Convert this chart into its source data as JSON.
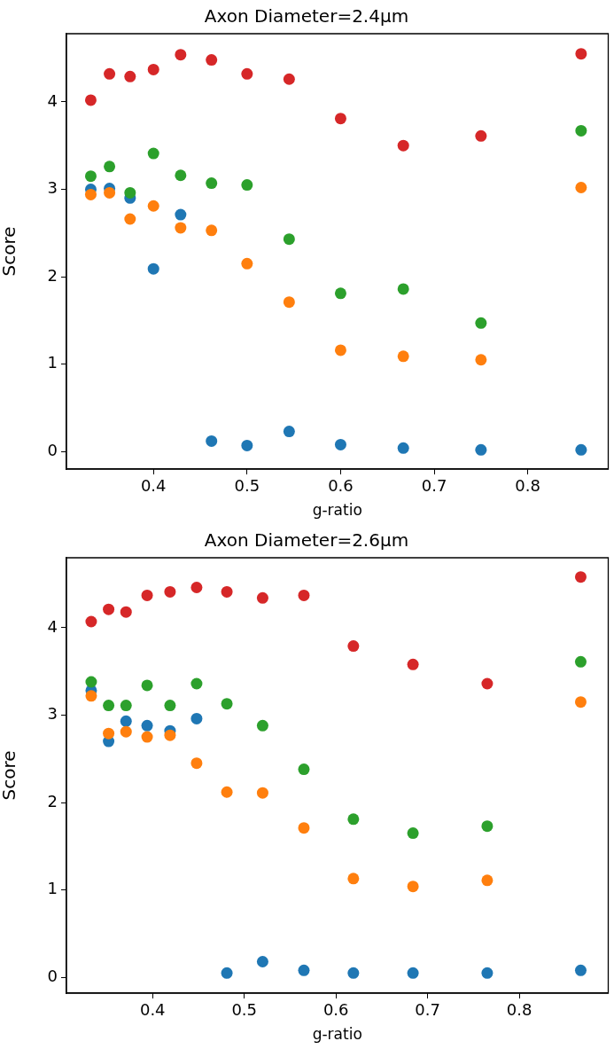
{
  "chart_data": [
    {
      "type": "scatter",
      "title": "Axon Diameter=2.4μm",
      "xlabel": "g-ratio",
      "ylabel": "Score",
      "x": [
        0.333,
        0.353,
        0.375,
        0.4,
        0.429,
        0.462,
        0.5,
        0.545,
        0.6,
        0.667,
        0.75,
        0.857
      ],
      "series": [
        {
          "color": "#1f77b4",
          "values": [
            3.0,
            3.01,
            2.9,
            2.09,
            2.71,
            0.12,
            0.07,
            0.23,
            0.08,
            0.04,
            0.02,
            0.02
          ]
        },
        {
          "color": "#ff7f0e",
          "values": [
            2.94,
            2.96,
            2.66,
            2.81,
            2.56,
            2.53,
            2.15,
            1.71,
            1.16,
            1.09,
            1.05,
            3.02
          ]
        },
        {
          "color": "#2ca02c",
          "values": [
            3.15,
            3.26,
            2.96,
            3.41,
            3.16,
            3.07,
            3.05,
            2.43,
            1.81,
            1.86,
            1.47,
            3.67
          ]
        },
        {
          "color": "#d62728",
          "values": [
            4.02,
            4.32,
            4.29,
            4.37,
            4.54,
            4.48,
            4.32,
            4.26,
            3.81,
            3.5,
            3.61,
            4.55
          ]
        }
      ],
      "xlim": [
        0.307,
        0.886
      ],
      "ylim": [
        -0.2,
        4.78
      ],
      "xticks": [
        0.4,
        0.5,
        0.6,
        0.7,
        0.8
      ],
      "yticks": [
        0,
        1,
        2,
        3,
        4
      ],
      "grid": false,
      "legend": false,
      "marker": "circle"
    },
    {
      "type": "scatter",
      "title": "Axon Diameter=2.6μm",
      "xlabel": "g-ratio",
      "ylabel": "Score",
      "x": [
        0.333,
        0.352,
        0.371,
        0.394,
        0.419,
        0.448,
        0.481,
        0.52,
        0.565,
        0.619,
        0.684,
        0.765,
        0.867
      ],
      "series": [
        {
          "color": "#1f77b4",
          "values": [
            3.28,
            2.7,
            2.93,
            2.88,
            2.82,
            2.96,
            0.05,
            0.18,
            0.08,
            0.05,
            0.05,
            0.05,
            0.08
          ]
        },
        {
          "color": "#ff7f0e",
          "values": [
            3.22,
            2.79,
            2.81,
            2.75,
            2.77,
            2.45,
            2.12,
            2.11,
            1.71,
            1.13,
            1.04,
            1.11,
            3.15
          ]
        },
        {
          "color": "#2ca02c",
          "values": [
            3.38,
            3.11,
            3.11,
            3.34,
            3.11,
            3.36,
            3.13,
            2.88,
            2.38,
            1.81,
            1.65,
            1.73,
            3.61
          ]
        },
        {
          "color": "#d62728",
          "values": [
            4.07,
            4.21,
            4.18,
            4.37,
            4.41,
            4.46,
            4.41,
            4.34,
            4.37,
            3.79,
            3.58,
            3.36,
            4.58
          ]
        }
      ],
      "xlim": [
        0.306,
        0.897
      ],
      "ylim": [
        -0.18,
        4.8
      ],
      "xticks": [
        0.4,
        0.5,
        0.6,
        0.7,
        0.8
      ],
      "yticks": [
        0,
        1,
        2,
        3,
        4
      ],
      "grid": false,
      "legend": false,
      "marker": "circle"
    }
  ]
}
